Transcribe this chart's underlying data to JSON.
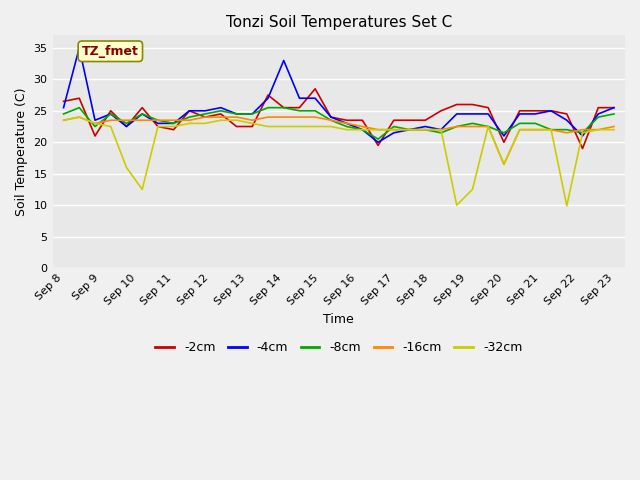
{
  "title": "Tonzi Soil Temperatures Set C",
  "xlabel": "Time",
  "ylabel": "Soil Temperature (C)",
  "annotation": "TZ_fmet",
  "ylim": [
    0,
    37
  ],
  "yticks": [
    0,
    5,
    10,
    15,
    20,
    25,
    30,
    35
  ],
  "x_labels": [
    "Sep 8",
    "Sep 9",
    "Sep 10",
    "Sep 11",
    "Sep 12",
    "Sep 13",
    "Sep 14",
    "Sep 15",
    "Sep 16",
    "Sep 17",
    "Sep 18",
    "Sep 19",
    "Sep 20",
    "Sep 21",
    "Sep 22",
    "Sep 23"
  ],
  "legend_order": [
    "-2cm",
    "-4cm",
    "-8cm",
    "-16cm",
    "-32cm"
  ],
  "colors": {
    "-2cm": "#cc0000",
    "-4cm": "#0000ff",
    "-8cm": "#00aa00",
    "-16cm": "#ff8800",
    "-32cm": "#cccc00"
  },
  "fig_bg": "#f0f0f0",
  "plot_bg": "#e8e8e8",
  "grid_color": "#ffffff",
  "annotation_box_color": "#ffffcc",
  "annotation_text_color": "#880000",
  "series": {
    "-2cm": [
      26.5,
      27.0,
      21.0,
      25.0,
      22.5,
      25.5,
      22.5,
      22.0,
      25.0,
      24.0,
      24.5,
      22.5,
      22.5,
      27.5,
      25.5,
      25.5,
      28.5,
      24.0,
      23.5,
      23.5,
      19.5,
      23.5,
      23.5,
      23.5,
      25.0,
      26.0,
      26.0,
      25.5,
      20.0,
      25.0,
      25.0,
      25.0,
      24.5,
      19.0,
      25.5,
      25.5
    ],
    "-4cm": [
      25.5,
      35.0,
      23.5,
      24.5,
      22.5,
      24.5,
      23.0,
      23.0,
      25.0,
      25.0,
      25.5,
      24.5,
      24.5,
      27.0,
      33.0,
      27.0,
      27.0,
      24.0,
      23.0,
      22.0,
      20.0,
      21.5,
      22.0,
      22.5,
      22.0,
      24.5,
      24.5,
      24.5,
      21.0,
      24.5,
      24.5,
      25.0,
      23.5,
      21.0,
      24.5,
      25.5
    ],
    "-8cm": [
      24.5,
      25.5,
      22.5,
      24.5,
      23.0,
      24.5,
      23.5,
      23.0,
      24.0,
      24.5,
      25.0,
      24.5,
      24.5,
      25.5,
      25.5,
      25.0,
      25.0,
      23.5,
      22.5,
      22.0,
      20.5,
      22.5,
      22.0,
      22.0,
      21.5,
      22.5,
      23.0,
      22.5,
      21.5,
      23.0,
      23.0,
      22.0,
      22.0,
      21.5,
      24.0,
      24.5
    ],
    "-16cm": [
      23.5,
      24.0,
      23.0,
      23.5,
      23.5,
      23.5,
      23.5,
      23.5,
      23.5,
      24.0,
      24.0,
      24.0,
      23.5,
      24.0,
      24.0,
      24.0,
      24.0,
      23.5,
      23.0,
      22.5,
      22.0,
      22.0,
      22.0,
      22.0,
      22.0,
      22.5,
      22.5,
      22.5,
      16.5,
      22.0,
      22.0,
      22.0,
      21.5,
      22.0,
      22.0,
      22.5
    ],
    "-32cm": [
      23.5,
      24.0,
      23.0,
      22.5,
      16.0,
      12.5,
      22.5,
      22.5,
      23.0,
      23.0,
      23.5,
      23.5,
      23.0,
      22.5,
      22.5,
      22.5,
      22.5,
      22.5,
      22.0,
      22.0,
      22.0,
      22.0,
      22.0,
      22.0,
      22.0,
      10.0,
      12.5,
      22.5,
      16.5,
      22.0,
      22.0,
      22.0,
      9.9,
      21.5,
      22.0,
      22.0
    ]
  },
  "n_points": 36,
  "points_per_day": 2.333
}
